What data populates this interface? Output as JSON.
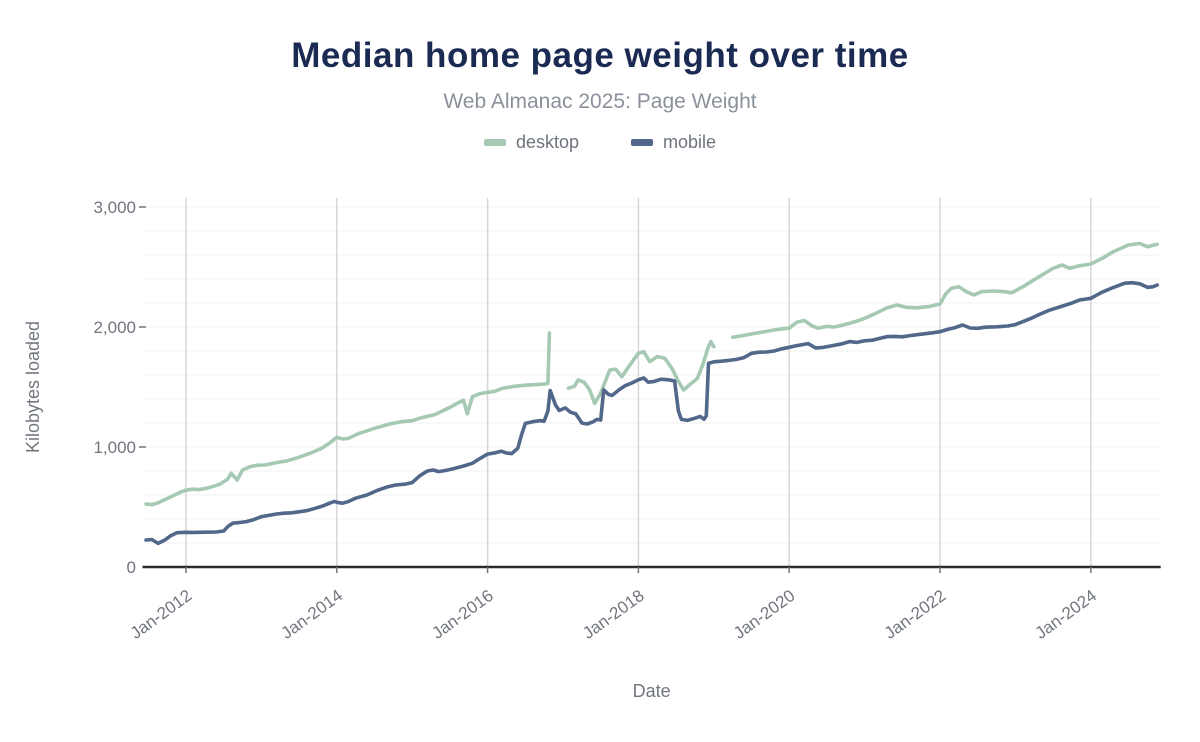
{
  "header": {
    "title": "Median home page weight over time",
    "subtitle": "Web Almanac 2025: Page Weight"
  },
  "legend": [
    {
      "label": "desktop",
      "color": "#a5c9b3"
    },
    {
      "label": "mobile",
      "color": "#52688a"
    }
  ],
  "colors": {
    "title": "#1b2a52",
    "subtitle": "#8b919b",
    "axis_text": "#71767e",
    "axis_line": "#2b2b2b",
    "grid_vertical": "#d6d6d6",
    "grid_horizontal": "#f1f1f1",
    "desktop_line": "#a5c9b3",
    "mobile_line": "#52688a"
  },
  "chart_data": {
    "type": "line",
    "title": "Median home page weight over time",
    "subtitle": "Web Almanac 2025: Page Weight",
    "xlabel": "Date",
    "ylabel": "Kilobytes loaded",
    "x_domain": [
      2011.45,
      2024.9
    ],
    "ylim": [
      0,
      3000
    ],
    "y_ticks": [
      {
        "v": 0,
        "label": "0"
      },
      {
        "v": 1000,
        "label": "1,000"
      },
      {
        "v": 2000,
        "label": "2,000"
      },
      {
        "v": 3000,
        "label": "3,000"
      }
    ],
    "y_minor_step": 200,
    "x_ticks": [
      {
        "v": 2012,
        "label": "Jan-2012"
      },
      {
        "v": 2014,
        "label": "Jan-2014"
      },
      {
        "v": 2016,
        "label": "Jan-2016"
      },
      {
        "v": 2018,
        "label": "Jan-2018"
      },
      {
        "v": 2020,
        "label": "Jan-2020"
      },
      {
        "v": 2022,
        "label": "Jan-2022"
      },
      {
        "v": 2024,
        "label": "Jan-2024"
      }
    ],
    "grid": "minor-horizontal + yearly-vertical",
    "legend_position": "top-center",
    "series": [
      {
        "name": "desktop",
        "color": "#a5c9b3",
        "width": 3.6,
        "points": [
          [
            2011.47,
            525
          ],
          [
            2011.55,
            520
          ],
          [
            2011.63,
            535
          ],
          [
            2011.75,
            570
          ],
          [
            2011.85,
            600
          ],
          [
            2011.95,
            630
          ],
          [
            2012.0,
            640
          ],
          [
            2012.08,
            648
          ],
          [
            2012.17,
            645
          ],
          [
            2012.3,
            660
          ],
          [
            2012.45,
            690
          ],
          [
            2012.55,
            730
          ],
          [
            2012.6,
            781
          ],
          [
            2012.68,
            725
          ],
          [
            2012.75,
            808
          ],
          [
            2012.85,
            836
          ],
          [
            2012.95,
            848
          ],
          [
            2013.05,
            850
          ],
          [
            2013.2,
            870
          ],
          [
            2013.35,
            886
          ],
          [
            2013.5,
            915
          ],
          [
            2013.65,
            948
          ],
          [
            2013.8,
            989
          ],
          [
            2013.9,
            1031
          ],
          [
            2014.0,
            1081
          ],
          [
            2014.08,
            1067
          ],
          [
            2014.15,
            1072
          ],
          [
            2014.3,
            1114
          ],
          [
            2014.5,
            1156
          ],
          [
            2014.7,
            1192
          ],
          [
            2014.85,
            1210
          ],
          [
            2015.0,
            1219
          ],
          [
            2015.1,
            1240
          ],
          [
            2015.2,
            1255
          ],
          [
            2015.3,
            1270
          ],
          [
            2015.4,
            1300
          ],
          [
            2015.5,
            1330
          ],
          [
            2015.6,
            1365
          ],
          [
            2015.68,
            1390
          ],
          [
            2015.73,
            1277
          ],
          [
            2015.8,
            1420
          ],
          [
            2015.9,
            1445
          ],
          [
            2016.0,
            1455
          ],
          [
            2016.1,
            1465
          ],
          [
            2016.2,
            1490
          ],
          [
            2016.35,
            1505
          ],
          [
            2016.5,
            1515
          ],
          [
            2016.65,
            1520
          ],
          [
            2016.75,
            1525
          ],
          [
            2016.8,
            1530
          ],
          [
            2016.82,
            1950
          ],
          null,
          [
            2017.07,
            1490
          ],
          [
            2017.15,
            1505
          ],
          [
            2017.2,
            1558
          ],
          [
            2017.28,
            1540
          ],
          [
            2017.35,
            1480
          ],
          [
            2017.42,
            1364
          ],
          [
            2017.5,
            1450
          ],
          [
            2017.55,
            1531
          ],
          [
            2017.62,
            1642
          ],
          [
            2017.7,
            1648
          ],
          [
            2017.78,
            1586
          ],
          [
            2017.85,
            1650
          ],
          [
            2017.95,
            1739
          ],
          [
            2018.0,
            1781
          ],
          [
            2018.07,
            1795
          ],
          [
            2018.15,
            1712
          ],
          [
            2018.25,
            1753
          ],
          [
            2018.35,
            1740
          ],
          [
            2018.45,
            1650
          ],
          [
            2018.52,
            1558
          ],
          [
            2018.6,
            1475
          ],
          [
            2018.7,
            1530
          ],
          [
            2018.78,
            1570
          ],
          [
            2018.85,
            1680
          ],
          [
            2018.92,
            1820
          ],
          [
            2018.96,
            1878
          ],
          [
            2019.0,
            1836
          ],
          null,
          [
            2019.25,
            1914
          ],
          [
            2019.35,
            1925
          ],
          [
            2019.5,
            1942
          ],
          [
            2019.65,
            1958
          ],
          [
            2019.8,
            1975
          ],
          [
            2019.92,
            1986
          ],
          [
            2020.0,
            1990
          ],
          [
            2020.1,
            2040
          ],
          [
            2020.2,
            2055
          ],
          [
            2020.3,
            2010
          ],
          [
            2020.38,
            1990
          ],
          [
            2020.5,
            2005
          ],
          [
            2020.6,
            2000
          ],
          [
            2020.7,
            2015
          ],
          [
            2020.8,
            2031
          ],
          [
            2020.9,
            2050
          ],
          [
            2021.0,
            2072
          ],
          [
            2021.15,
            2114
          ],
          [
            2021.3,
            2160
          ],
          [
            2021.43,
            2183
          ],
          [
            2021.55,
            2164
          ],
          [
            2021.7,
            2160
          ],
          [
            2021.85,
            2170
          ],
          [
            2022.0,
            2192
          ],
          [
            2022.08,
            2280
          ],
          [
            2022.15,
            2322
          ],
          [
            2022.25,
            2336
          ],
          [
            2022.35,
            2294
          ],
          [
            2022.45,
            2267
          ],
          [
            2022.55,
            2294
          ],
          [
            2022.7,
            2300
          ],
          [
            2022.85,
            2295
          ],
          [
            2022.95,
            2285
          ],
          [
            2023.1,
            2336
          ],
          [
            2023.3,
            2414
          ],
          [
            2023.5,
            2489
          ],
          [
            2023.62,
            2517
          ],
          [
            2023.72,
            2489
          ],
          [
            2023.85,
            2510
          ],
          [
            2024.0,
            2525
          ],
          [
            2024.15,
            2572
          ],
          [
            2024.3,
            2628
          ],
          [
            2024.5,
            2683
          ],
          [
            2024.65,
            2696
          ],
          [
            2024.75,
            2669
          ],
          [
            2024.88,
            2689
          ]
        ]
      },
      {
        "name": "mobile",
        "color": "#52688a",
        "width": 3.6,
        "points": [
          [
            2011.47,
            225
          ],
          [
            2011.55,
            228
          ],
          [
            2011.63,
            197
          ],
          [
            2011.72,
            225
          ],
          [
            2011.8,
            262
          ],
          [
            2011.88,
            286
          ],
          [
            2012.0,
            289
          ],
          [
            2012.1,
            288
          ],
          [
            2012.25,
            290
          ],
          [
            2012.4,
            292
          ],
          [
            2012.5,
            300
          ],
          [
            2012.56,
            340
          ],
          [
            2012.62,
            365
          ],
          [
            2012.72,
            372
          ],
          [
            2012.8,
            378
          ],
          [
            2012.9,
            395
          ],
          [
            2013.0,
            419
          ],
          [
            2013.1,
            430
          ],
          [
            2013.2,
            442
          ],
          [
            2013.3,
            448
          ],
          [
            2013.4,
            452
          ],
          [
            2013.5,
            460
          ],
          [
            2013.6,
            469
          ],
          [
            2013.72,
            490
          ],
          [
            2013.82,
            510
          ],
          [
            2013.92,
            536
          ],
          [
            2013.97,
            547
          ],
          [
            2014.0,
            540
          ],
          [
            2014.07,
            531
          ],
          [
            2014.15,
            545
          ],
          [
            2014.25,
            573
          ],
          [
            2014.4,
            600
          ],
          [
            2014.55,
            642
          ],
          [
            2014.68,
            669
          ],
          [
            2014.78,
            683
          ],
          [
            2014.9,
            690
          ],
          [
            2015.0,
            703
          ],
          [
            2015.1,
            760
          ],
          [
            2015.2,
            800
          ],
          [
            2015.28,
            808
          ],
          [
            2015.35,
            795
          ],
          [
            2015.45,
            805
          ],
          [
            2015.55,
            820
          ],
          [
            2015.7,
            845
          ],
          [
            2015.8,
            865
          ],
          [
            2015.9,
            905
          ],
          [
            2016.0,
            941
          ],
          [
            2016.1,
            952
          ],
          [
            2016.18,
            965
          ],
          [
            2016.25,
            950
          ],
          [
            2016.32,
            945
          ],
          [
            2016.4,
            990
          ],
          [
            2016.45,
            1100
          ],
          [
            2016.5,
            1197
          ],
          [
            2016.6,
            1211
          ],
          [
            2016.7,
            1220
          ],
          [
            2016.75,
            1215
          ],
          [
            2016.8,
            1300
          ],
          [
            2016.83,
            1471
          ],
          [
            2016.9,
            1350
          ],
          [
            2016.95,
            1304
          ],
          [
            2017.03,
            1326
          ],
          [
            2017.1,
            1290
          ],
          [
            2017.17,
            1276
          ],
          [
            2017.25,
            1200
          ],
          [
            2017.32,
            1192
          ],
          [
            2017.4,
            1210
          ],
          [
            2017.45,
            1230
          ],
          [
            2017.5,
            1225
          ],
          [
            2017.54,
            1476
          ],
          [
            2017.6,
            1440
          ],
          [
            2017.65,
            1429
          ],
          [
            2017.75,
            1480
          ],
          [
            2017.83,
            1513
          ],
          [
            2017.9,
            1530
          ],
          [
            2018.0,
            1560
          ],
          [
            2018.07,
            1576
          ],
          [
            2018.13,
            1540
          ],
          [
            2018.2,
            1545
          ],
          [
            2018.3,
            1565
          ],
          [
            2018.4,
            1560
          ],
          [
            2018.48,
            1550
          ],
          [
            2018.53,
            1300
          ],
          [
            2018.57,
            1230
          ],
          [
            2018.65,
            1222
          ],
          [
            2018.75,
            1240
          ],
          [
            2018.82,
            1255
          ],
          [
            2018.87,
            1232
          ],
          [
            2018.9,
            1260
          ],
          [
            2018.93,
            1697
          ],
          [
            2019.0,
            1710
          ],
          [
            2019.1,
            1715
          ],
          [
            2019.2,
            1722
          ],
          [
            2019.3,
            1730
          ],
          [
            2019.4,
            1745
          ],
          [
            2019.5,
            1781
          ],
          [
            2019.6,
            1790
          ],
          [
            2019.7,
            1792
          ],
          [
            2019.8,
            1800
          ],
          [
            2019.9,
            1818
          ],
          [
            2020.0,
            1831
          ],
          [
            2020.1,
            1845
          ],
          [
            2020.25,
            1862
          ],
          [
            2020.35,
            1825
          ],
          [
            2020.45,
            1830
          ],
          [
            2020.55,
            1842
          ],
          [
            2020.7,
            1860
          ],
          [
            2020.8,
            1878
          ],
          [
            2020.9,
            1872
          ],
          [
            2021.0,
            1885
          ],
          [
            2021.1,
            1890
          ],
          [
            2021.2,
            1905
          ],
          [
            2021.3,
            1920
          ],
          [
            2021.4,
            1922
          ],
          [
            2021.5,
            1918
          ],
          [
            2021.6,
            1928
          ],
          [
            2021.75,
            1940
          ],
          [
            2021.9,
            1952
          ],
          [
            2022.0,
            1961
          ],
          [
            2022.1,
            1980
          ],
          [
            2022.2,
            1995
          ],
          [
            2022.3,
            2017
          ],
          [
            2022.4,
            1992
          ],
          [
            2022.5,
            1989
          ],
          [
            2022.6,
            1998
          ],
          [
            2022.75,
            2002
          ],
          [
            2022.9,
            2008
          ],
          [
            2023.0,
            2020
          ],
          [
            2023.1,
            2045
          ],
          [
            2023.2,
            2070
          ],
          [
            2023.3,
            2100
          ],
          [
            2023.45,
            2140
          ],
          [
            2023.6,
            2170
          ],
          [
            2023.75,
            2200
          ],
          [
            2023.85,
            2225
          ],
          [
            2024.0,
            2239
          ],
          [
            2024.15,
            2290
          ],
          [
            2024.3,
            2330
          ],
          [
            2024.45,
            2365
          ],
          [
            2024.55,
            2369
          ],
          [
            2024.65,
            2360
          ],
          [
            2024.75,
            2331
          ],
          [
            2024.82,
            2335
          ],
          [
            2024.88,
            2350
          ]
        ]
      }
    ]
  }
}
